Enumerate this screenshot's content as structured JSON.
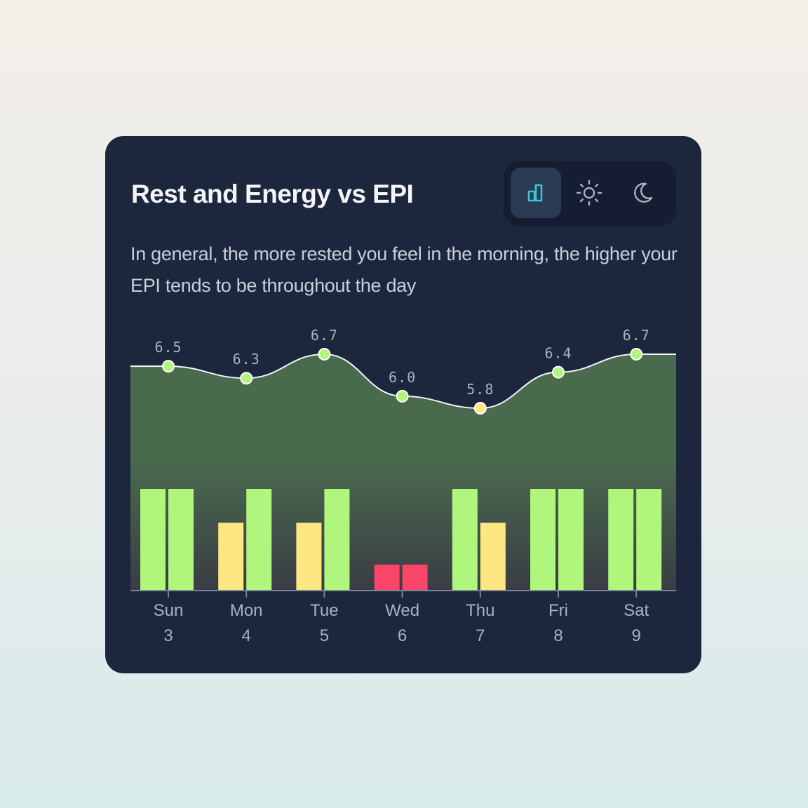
{
  "card": {
    "title": "Rest and Energy vs EPI",
    "description": "In general, the more rested you feel in the morning, the higher your EPI tends to be throughout the day"
  },
  "toggle": {
    "items": [
      {
        "icon": "bar-chart-icon",
        "active": true
      },
      {
        "icon": "sun-icon",
        "active": false
      },
      {
        "icon": "moon-icon",
        "active": false
      }
    ],
    "active_color": "#37c6d8",
    "inactive_color": "#aab2c0"
  },
  "chart_data": {
    "type": "bar",
    "categories": [
      "Sun",
      "Mon",
      "Tue",
      "Wed",
      "Thu",
      "Fri",
      "Sat"
    ],
    "dates": [
      "3",
      "4",
      "5",
      "6",
      "7",
      "8",
      "9"
    ],
    "line": {
      "type": "area",
      "values": [
        6.5,
        6.3,
        6.7,
        6.0,
        5.8,
        6.4,
        6.7
      ],
      "labels": [
        "6.5",
        "6.3",
        "6.7",
        "6.0",
        "5.8",
        "6.4",
        "6.7"
      ],
      "point_levels": [
        "high",
        "high",
        "high",
        "high",
        "mid",
        "high",
        "high"
      ]
    },
    "bars": {
      "series": [
        {
          "values": [
            3,
            2,
            2,
            1,
            3,
            3,
            3
          ]
        },
        {
          "values": [
            3,
            3,
            3,
            1,
            2,
            3,
            3
          ]
        }
      ],
      "max": 3
    },
    "colors": {
      "high": "#b0f57c",
      "mid": "#fde783",
      "low": "#fa4468",
      "line": "#f2f4f7",
      "area_top": "#4a6a4e",
      "area_bottom": "#3a3c45"
    },
    "grid": false,
    "legend": "none"
  }
}
